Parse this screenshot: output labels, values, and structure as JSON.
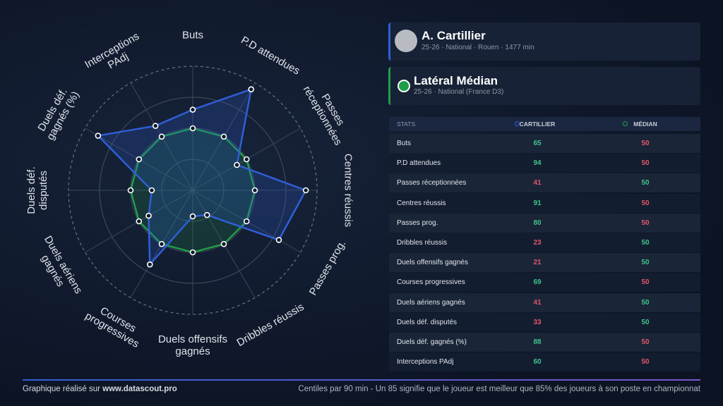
{
  "chart_data": {
    "type": "radar",
    "categories": [
      "Buts",
      "P.D attendues",
      "Passes réceptionnées",
      "Centres réussis",
      "Passes prog.",
      "Dribbles réussis",
      "Duels offensifs gagnés",
      "Courses progressives",
      "Duels aériens gagnés",
      "Duels déf. disputés",
      "Duels déf. gagnés (%)",
      "Interceptions PAdj"
    ],
    "series": [
      {
        "name": "CARTILLIER",
        "color": "#2f5fd6",
        "values": [
          65,
          94,
          41,
          91,
          80,
          23,
          21,
          69,
          41,
          33,
          88,
          60
        ]
      },
      {
        "name": "MÉDIAN",
        "color": "#1f9e4a",
        "values": [
          50,
          50,
          50,
          50,
          50,
          50,
          50,
          50,
          50,
          50,
          50,
          50
        ]
      }
    ],
    "rlim": [
      0,
      100
    ],
    "rticks": [
      25,
      50,
      75,
      100
    ]
  },
  "player_card": {
    "title": "A. Cartillier",
    "subtitle": "25-26 · National · Rouen · 1477 min"
  },
  "median_card": {
    "title": "Latéral Médian",
    "subtitle": "25-26 · National (France D3)"
  },
  "table": {
    "header": "STATS"
  },
  "footer": {
    "credit_prefix": "Graphique réalisé sur",
    "credit_link": "www.datascout.pro",
    "note": "Centiles par 90 min - Un 85 signifie que le joueur est meilleur que 85% des joueurs à son poste en championnat"
  }
}
